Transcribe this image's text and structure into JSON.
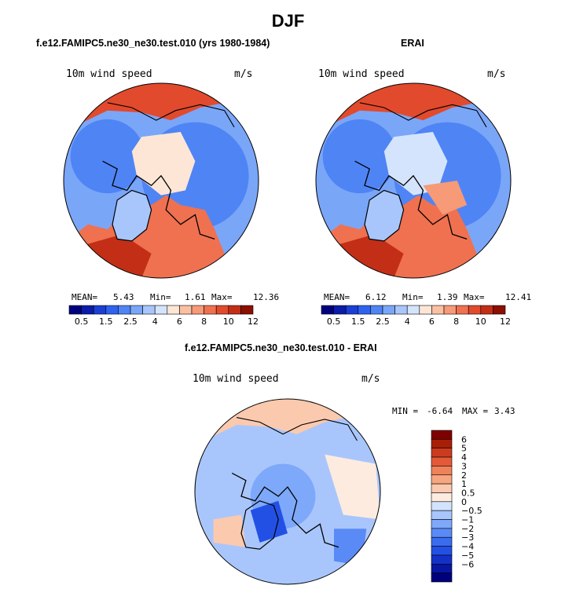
{
  "main_title": "DJF",
  "colors": {
    "abs_scale": [
      "#00007f",
      "#0b1ca8",
      "#1b3fd4",
      "#2e63f0",
      "#4f84f5",
      "#7aa6f8",
      "#a8c6fb",
      "#d4e4fc",
      "#fde6d6",
      "#fbc0a2",
      "#f69a78",
      "#ef7150",
      "#e14a2c",
      "#c22f16",
      "#8c0f00"
    ],
    "diff_scale": [
      "#00007f",
      "#0716a3",
      "#1431c6",
      "#2350e4",
      "#3a6cf0",
      "#5a8af6",
      "#7ea8fa",
      "#a9c6fc",
      "#d3e3fd",
      "#fdebe0",
      "#fbc9ae",
      "#f7a680",
      "#f08259",
      "#e45a38",
      "#cd3b1e",
      "#a81f08",
      "#7f0000"
    ],
    "coast": "#000000"
  },
  "chart_data": [
    {
      "type": "heatmap",
      "title": "f.e12.FAMIPC5.ne30_ne30.test.010 (yrs 1980-1984)",
      "variable": "10m wind speed",
      "units": "m/s",
      "projection": "north polar stereographic",
      "stats": {
        "mean_label": "MEAN=",
        "mean": "5.43",
        "min_label": "Min=",
        "min": "1.61",
        "max_label": "Max=",
        "max": "12.36"
      },
      "colorbar_ticks": [
        "0.5",
        "1.5",
        "2.5",
        "4",
        "6",
        "8",
        "10",
        "12"
      ],
      "colorbar_levels": [
        0.5,
        1,
        1.5,
        2,
        2.5,
        3,
        4,
        5,
        6,
        7,
        8,
        9,
        10,
        11,
        12
      ]
    },
    {
      "type": "heatmap",
      "title": "ERAI",
      "variable": "10m wind speed",
      "units": "m/s",
      "projection": "north polar stereographic",
      "stats": {
        "mean_label": "MEAN=",
        "mean": "6.12",
        "min_label": "Min=",
        "min": "1.39",
        "max_label": "Max=",
        "max": "12.41"
      },
      "colorbar_ticks": [
        "0.5",
        "1.5",
        "2.5",
        "4",
        "6",
        "8",
        "10",
        "12"
      ],
      "colorbar_levels": [
        0.5,
        1,
        1.5,
        2,
        2.5,
        3,
        4,
        5,
        6,
        7,
        8,
        9,
        10,
        11,
        12
      ]
    },
    {
      "type": "heatmap",
      "title": "f.e12.FAMIPC5.ne30_ne30.test.010 - ERAI",
      "variable": "10m wind speed",
      "units": "m/s",
      "projection": "north polar stereographic",
      "stats": {
        "min_label": "MIN =",
        "min": "-6.64",
        "max_label": "MAX =",
        "max": "3.43"
      },
      "colorbar_ticks": [
        "6",
        "5",
        "4",
        "3",
        "2",
        "1",
        "0.5",
        "0",
        "−0.5",
        "−1",
        "−2",
        "−3",
        "−4",
        "−5",
        "−6"
      ],
      "colorbar_levels": [
        -6,
        -5,
        -4,
        -3,
        -2,
        -1,
        -0.5,
        0,
        0.5,
        1,
        2,
        3,
        4,
        5,
        6
      ]
    }
  ]
}
